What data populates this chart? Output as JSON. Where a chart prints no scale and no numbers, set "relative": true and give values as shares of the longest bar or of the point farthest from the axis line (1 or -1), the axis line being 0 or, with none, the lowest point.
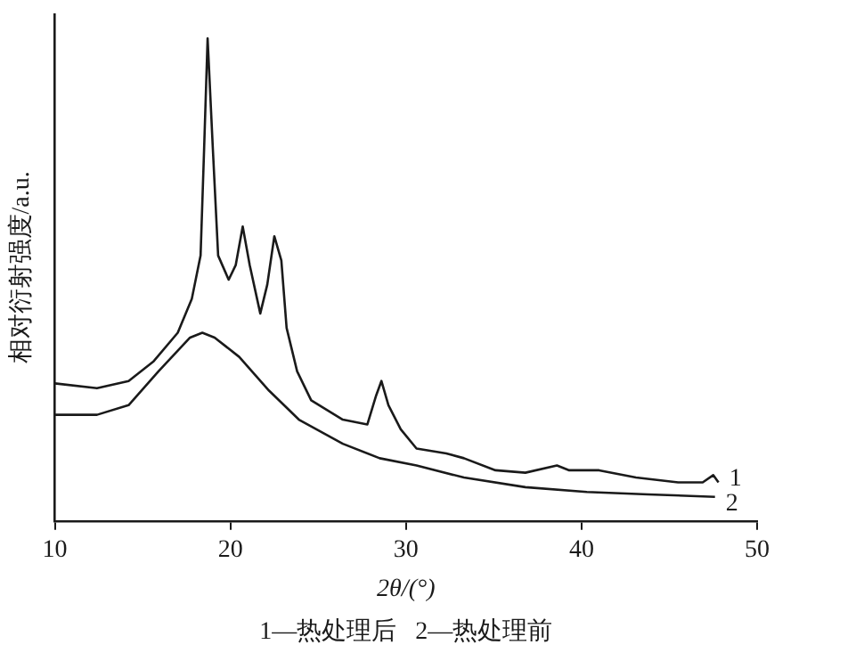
{
  "chart_data": {
    "type": "line",
    "relative": true,
    "xlabel": "2θ/(°)",
    "ylabel": "相对衍射强度/a.u.",
    "xlim": [
      10,
      50
    ],
    "xticks": [
      10,
      20,
      30,
      40,
      50
    ],
    "grid": false,
    "legend": false,
    "marker": "none",
    "line_style": "solid",
    "annotations": [
      "1—热处理后   2—热处理前"
    ],
    "series": [
      {
        "name": "1",
        "color": "#1a1a1a",
        "x": [
          10,
          12.4,
          14.2,
          15.6,
          17.0,
          17.8,
          18.3,
          18.5,
          18.7,
          19.0,
          19.3,
          19.9,
          20.3,
          20.7,
          21.1,
          21.7,
          22.1,
          22.5,
          22.9,
          23.2,
          23.8,
          24.6,
          26.4,
          27.8,
          28.3,
          28.6,
          29.0,
          29.7,
          30.6,
          32.3,
          33.3,
          35.1,
          36.8,
          38.6,
          39.3,
          41.0,
          43.1,
          45.5,
          46.9,
          47.5,
          47.8
        ],
        "values": [
          0.285,
          0.275,
          0.29,
          0.33,
          0.39,
          0.46,
          0.55,
          0.77,
          1.0,
          0.77,
          0.55,
          0.5,
          0.53,
          0.61,
          0.53,
          0.43,
          0.49,
          0.59,
          0.54,
          0.4,
          0.31,
          0.25,
          0.21,
          0.2,
          0.26,
          0.29,
          0.24,
          0.19,
          0.15,
          0.14,
          0.13,
          0.105,
          0.1,
          0.115,
          0.105,
          0.105,
          0.09,
          0.08,
          0.08,
          0.095,
          0.08
        ]
      },
      {
        "name": "2",
        "color": "#1a1a1a",
        "x": [
          10,
          12.4,
          14.2,
          15.9,
          17.7,
          18.4,
          19.1,
          20.5,
          22.2,
          23.9,
          26.4,
          28.5,
          30.6,
          33.3,
          36.8,
          40.3,
          43.8,
          47.6
        ],
        "values": [
          0.22,
          0.22,
          0.24,
          0.31,
          0.38,
          0.39,
          0.38,
          0.34,
          0.27,
          0.21,
          0.16,
          0.13,
          0.115,
          0.09,
          0.07,
          0.06,
          0.055,
          0.05
        ]
      }
    ]
  }
}
